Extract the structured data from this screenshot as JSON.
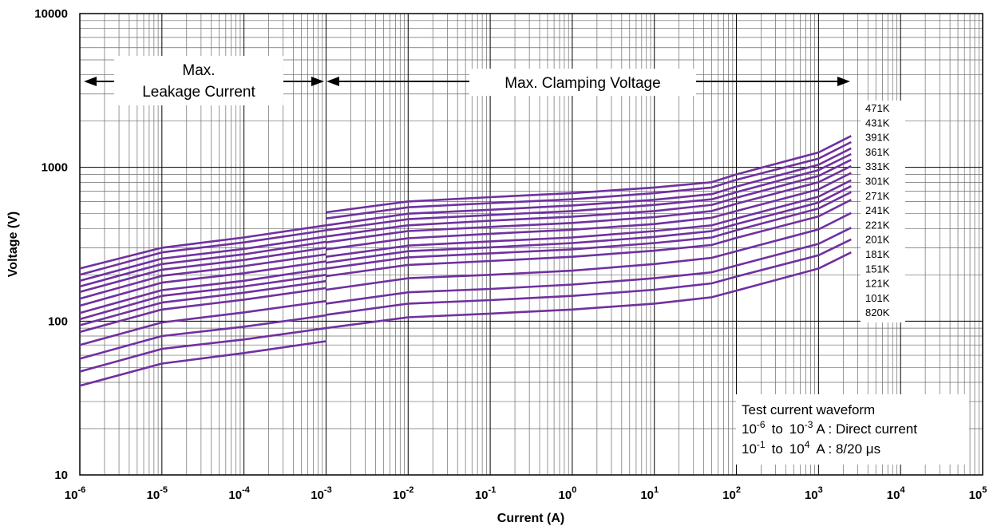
{
  "chart_data": {
    "type": "line",
    "xlabel": "Current (A)",
    "ylabel": "Voltage (V)",
    "xscale": "log",
    "yscale": "log",
    "xlim": [
      1e-06,
      100000
    ],
    "ylim": [
      10,
      10000
    ],
    "grid": true,
    "line_color": "#7030a0",
    "x_ticks": [
      {
        "base": "10",
        "exp": "-6"
      },
      {
        "base": "10",
        "exp": "-5"
      },
      {
        "base": "10",
        "exp": "-4"
      },
      {
        "base": "10",
        "exp": "-3"
      },
      {
        "base": "10",
        "exp": "-2"
      },
      {
        "base": "10",
        "exp": "-1"
      },
      {
        "base": "10",
        "exp": "0"
      },
      {
        "base": "10",
        "exp": "1"
      },
      {
        "base": "10",
        "exp": "2"
      },
      {
        "base": "10",
        "exp": "3"
      },
      {
        "base": "10",
        "exp": "4"
      },
      {
        "base": "10",
        "exp": "5"
      }
    ],
    "y_ticks": [
      "10",
      "100",
      "1000",
      "10000"
    ],
    "leakage_x": [
      1e-06,
      1e-05,
      0.0001,
      0.001
    ],
    "clamping_x": [
      0.001,
      0.01,
      0.1,
      1,
      10,
      50,
      100,
      1000,
      2500
    ],
    "series": [
      {
        "name": "471K",
        "leakage": [
          220,
          300,
          350,
          420
        ],
        "clamping": [
          510,
          600,
          640,
          680,
          740,
          800,
          900,
          1250,
          1600
        ]
      },
      {
        "name": "431K",
        "leakage": [
          200,
          280,
          325,
          390
        ],
        "clamping": [
          465,
          550,
          585,
          620,
          680,
          740,
          830,
          1140,
          1460
        ]
      },
      {
        "name": "391K",
        "leakage": [
          183,
          255,
          295,
          355
        ],
        "clamping": [
          420,
          500,
          530,
          565,
          615,
          670,
          750,
          1040,
          1330
        ]
      },
      {
        "name": "361K",
        "leakage": [
          168,
          235,
          272,
          328
        ],
        "clamping": [
          390,
          460,
          490,
          520,
          570,
          620,
          690,
          960,
          1220
        ]
      },
      {
        "name": "331K",
        "leakage": [
          155,
          216,
          250,
          300
        ],
        "clamping": [
          355,
          420,
          450,
          478,
          520,
          570,
          635,
          880,
          1120
        ]
      },
      {
        "name": "301K",
        "leakage": [
          140,
          197,
          228,
          272
        ],
        "clamping": [
          325,
          385,
          410,
          435,
          475,
          520,
          580,
          800,
          1020
        ]
      },
      {
        "name": "271K",
        "leakage": [
          126,
          178,
          205,
          245
        ],
        "clamping": [
          293,
          346,
          370,
          393,
          428,
          470,
          520,
          720,
          920
        ]
      },
      {
        "name": "241K",
        "leakage": [
          113,
          159,
          183,
          220
        ],
        "clamping": [
          262,
          310,
          330,
          350,
          385,
          420,
          465,
          645,
          825
        ]
      },
      {
        "name": "221K",
        "leakage": [
          103,
          146,
          168,
          200
        ],
        "clamping": [
          240,
          285,
          302,
          322,
          353,
          385,
          428,
          590,
          755
        ]
      },
      {
        "name": "201K",
        "leakage": [
          94,
          132,
          153,
          182
        ],
        "clamping": [
          220,
          260,
          276,
          293,
          322,
          350,
          390,
          540,
          690
        ]
      },
      {
        "name": "181K",
        "leakage": [
          85,
          119,
          138,
          164
        ],
        "clamping": [
          196,
          232,
          246,
          262,
          287,
          313,
          348,
          480,
          615
        ]
      },
      {
        "name": "151K",
        "leakage": [
          70,
          98,
          114,
          135
        ],
        "clamping": [
          160,
          190,
          200,
          213,
          235,
          258,
          285,
          395,
          505
        ]
      },
      {
        "name": "121K",
        "leakage": [
          57,
          80,
          92,
          109
        ],
        "clamping": [
          130,
          154,
          162,
          173,
          190,
          208,
          230,
          318,
          405
        ]
      },
      {
        "name": "101K",
        "leakage": [
          47,
          66,
          76,
          90
        ],
        "clamping": [
          110,
          130,
          137,
          146,
          160,
          176,
          195,
          268,
          340
        ]
      },
      {
        "name": "820K",
        "leakage": [
          38,
          53,
          62,
          74
        ],
        "clamping": [
          90,
          106,
          112,
          119,
          130,
          143,
          158,
          220,
          280
        ]
      }
    ],
    "annotations": {
      "leakage_line1": "Max.",
      "leakage_line2": "Leakage Current",
      "clamping": "Max. Clamping Voltage",
      "legend_title": "Test current waveform",
      "legend_row1": {
        "a_base": "10",
        "a_exp": "-6",
        "mid": "to",
        "b_base": "10",
        "b_exp": "-3",
        "rest": "A : Direct current"
      },
      "legend_row2": {
        "a_base": "10",
        "a_exp": "-1",
        "mid": "to",
        "b_base": "10",
        "b_exp": "4",
        "rest": "A : 8/20 μs"
      }
    }
  }
}
